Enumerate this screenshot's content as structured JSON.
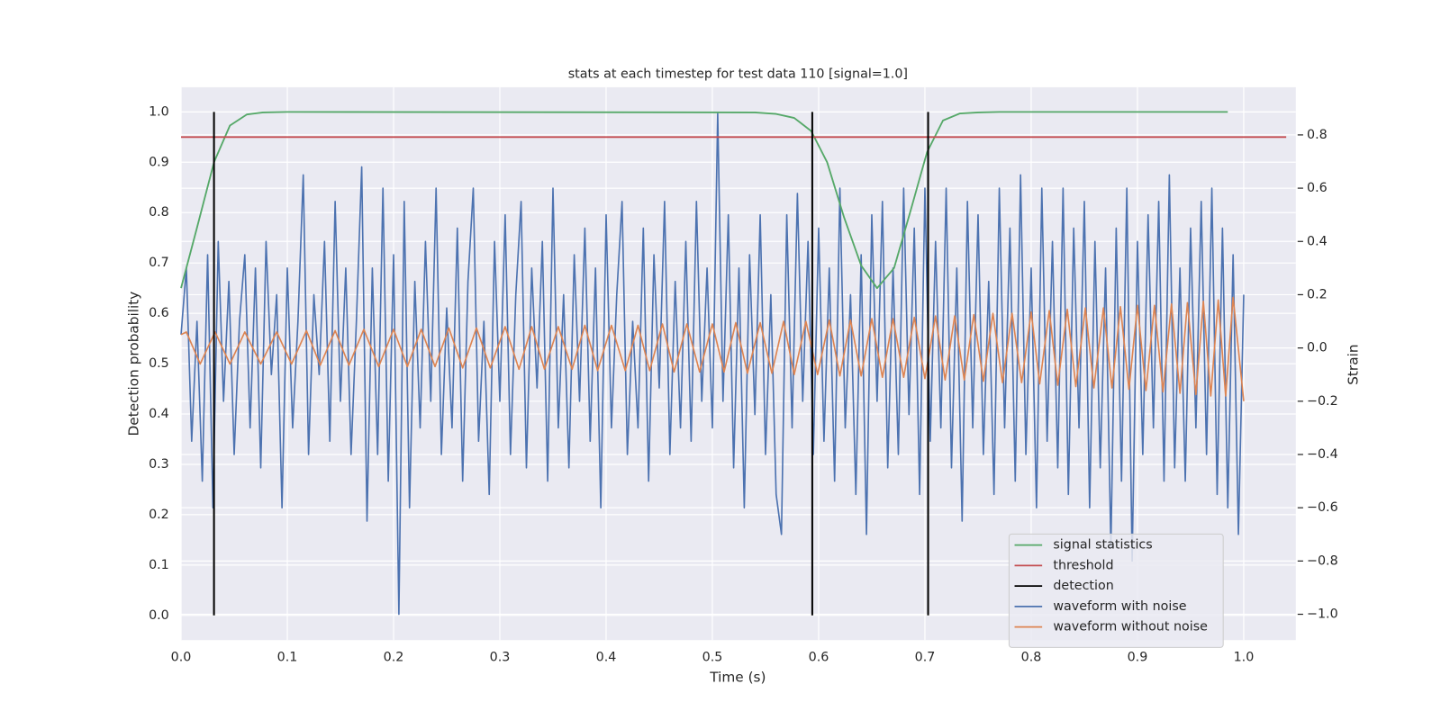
{
  "chart_data": {
    "type": "line",
    "title": "stats at each timestep for test data 110 [signal=1.0]",
    "xlabel": "Time (s)",
    "ylabel": "Detection probability",
    "y2label": "Strain",
    "xlim": [
      0,
      1.049
    ],
    "ylim": [
      -0.049,
      1.049
    ],
    "y2lim": [
      -1.097,
      0.979
    ],
    "xticks": [
      {
        "value": 0,
        "label": "0.0"
      },
      {
        "value": 0.1,
        "label": "0.1"
      },
      {
        "value": 0.2,
        "label": "0.2"
      },
      {
        "value": 0.3,
        "label": "0.3"
      },
      {
        "value": 0.4,
        "label": "0.4"
      },
      {
        "value": 0.5,
        "label": "0.5"
      },
      {
        "value": 0.6,
        "label": "0.6"
      },
      {
        "value": 0.7,
        "label": "0.7"
      },
      {
        "value": 0.8,
        "label": "0.8"
      },
      {
        "value": 0.9,
        "label": "0.9"
      },
      {
        "value": 1,
        "label": "1.0"
      }
    ],
    "yticks": [
      {
        "value": 0,
        "label": "0.0"
      },
      {
        "value": 0.1,
        "label": "0.1"
      },
      {
        "value": 0.2,
        "label": "0.2"
      },
      {
        "value": 0.3,
        "label": "0.3"
      },
      {
        "value": 0.4,
        "label": "0.4"
      },
      {
        "value": 0.5,
        "label": "0.5"
      },
      {
        "value": 0.6,
        "label": "0.6"
      },
      {
        "value": 0.7,
        "label": "0.7"
      },
      {
        "value": 0.8,
        "label": "0.8"
      },
      {
        "value": 0.9,
        "label": "0.9"
      },
      {
        "value": 1,
        "label": "1.0"
      }
    ],
    "y2ticks": [
      {
        "value": -1,
        "label": "−1.0"
      },
      {
        "value": -0.8,
        "label": "−0.8"
      },
      {
        "value": -0.6,
        "label": "−0.6"
      },
      {
        "value": -0.4,
        "label": "−0.4"
      },
      {
        "value": -0.2,
        "label": "−0.2"
      },
      {
        "value": 0,
        "label": "0.0"
      },
      {
        "value": 0.2,
        "label": "0.2"
      },
      {
        "value": 0.4,
        "label": "0.4"
      },
      {
        "value": 0.6,
        "label": "0.6"
      },
      {
        "value": 0.8,
        "label": "0.8"
      }
    ],
    "grid": true,
    "legend": "lower right",
    "series": [
      {
        "name": "signal statistics",
        "color": "#55a868",
        "x": [
          0,
          0.015,
          0.031,
          0.046,
          0.062,
          0.077,
          0.1,
          0.54,
          0.56,
          0.577,
          0.593,
          0.608,
          0.624,
          0.64,
          0.655,
          0.671,
          0.686,
          0.702,
          0.717,
          0.733,
          0.75,
          0.77,
          0.985
        ],
        "values": [
          0.65,
          0.77,
          0.9,
          0.973,
          0.995,
          0.999,
          1.0,
          0.999,
          0.996,
          0.988,
          0.962,
          0.9,
          0.79,
          0.695,
          0.65,
          0.69,
          0.8,
          0.92,
          0.983,
          0.997,
          0.999,
          1.0,
          1.0
        ]
      },
      {
        "name": "threshold",
        "color": "#c44e52",
        "x": [
          0,
          1.04
        ],
        "values": [
          0.95,
          0.95
        ]
      },
      {
        "name": "detection",
        "color": "#000000",
        "kind": "vlines",
        "x": [
          0.031,
          0.594,
          0.703
        ],
        "ymin": [
          0,
          0,
          0
        ],
        "ymax": [
          1,
          1,
          1
        ]
      },
      {
        "name": "waveform with noise",
        "color": "#4c72b0",
        "axis": "y2",
        "x": [
          0,
          0.005,
          0.01,
          0.015,
          0.02,
          0.025,
          0.03,
          0.035,
          0.04,
          0.045,
          0.05,
          0.055,
          0.06,
          0.065,
          0.07,
          0.075,
          0.08,
          0.085,
          0.09,
          0.095,
          0.1,
          0.105,
          0.11,
          0.115,
          0.12,
          0.125,
          0.13,
          0.135,
          0.14,
          0.145,
          0.15,
          0.155,
          0.16,
          0.165,
          0.17,
          0.175,
          0.18,
          0.185,
          0.19,
          0.195,
          0.2,
          0.205,
          0.21,
          0.215,
          0.22,
          0.225,
          0.23,
          0.235,
          0.24,
          0.245,
          0.25,
          0.255,
          0.26,
          0.265,
          0.27,
          0.275,
          0.28,
          0.285,
          0.29,
          0.295,
          0.3,
          0.305,
          0.31,
          0.315,
          0.32,
          0.325,
          0.33,
          0.335,
          0.34,
          0.345,
          0.35,
          0.355,
          0.36,
          0.365,
          0.37,
          0.375,
          0.38,
          0.385,
          0.39,
          0.395,
          0.4,
          0.405,
          0.41,
          0.415,
          0.42,
          0.425,
          0.43,
          0.435,
          0.44,
          0.445,
          0.45,
          0.455,
          0.46,
          0.465,
          0.47,
          0.475,
          0.48,
          0.485,
          0.49,
          0.495,
          0.5,
          0.505,
          0.51,
          0.515,
          0.52,
          0.525,
          0.53,
          0.535,
          0.54,
          0.545,
          0.55,
          0.555,
          0.56,
          0.565,
          0.57,
          0.575,
          0.58,
          0.585,
          0.59,
          0.595,
          0.6,
          0.605,
          0.61,
          0.615,
          0.62,
          0.625,
          0.63,
          0.635,
          0.64,
          0.645,
          0.65,
          0.655,
          0.66,
          0.665,
          0.67,
          0.675,
          0.68,
          0.685,
          0.69,
          0.695,
          0.7,
          0.705,
          0.71,
          0.715,
          0.72,
          0.725,
          0.73,
          0.735,
          0.74,
          0.745,
          0.75,
          0.755,
          0.76,
          0.765,
          0.77,
          0.775,
          0.78,
          0.785,
          0.79,
          0.795,
          0.8,
          0.805,
          0.81,
          0.815,
          0.82,
          0.825,
          0.83,
          0.835,
          0.84,
          0.845,
          0.85,
          0.855,
          0.86,
          0.865,
          0.87,
          0.875,
          0.88,
          0.885,
          0.89,
          0.895,
          0.9,
          0.905,
          0.91,
          0.915,
          0.92,
          0.925,
          0.93,
          0.935,
          0.94,
          0.945,
          0.95,
          0.955,
          0.96,
          0.965,
          0.97,
          0.975,
          0.98,
          0.985,
          0.99,
          0.995,
          1
        ],
        "values": [
          0.05,
          0.3,
          -0.35,
          0.1,
          -0.5,
          0.35,
          -0.6,
          0.4,
          -0.2,
          0.25,
          -0.4,
          0.1,
          0.35,
          -0.3,
          0.3,
          -0.45,
          0.4,
          -0.1,
          0.2,
          -0.6,
          0.3,
          -0.3,
          0.1,
          0.65,
          -0.4,
          0.2,
          -0.1,
          0.4,
          -0.35,
          0.55,
          -0.2,
          0.3,
          -0.4,
          0.1,
          0.68,
          -0.65,
          0.3,
          -0.4,
          0.6,
          -0.5,
          0.35,
          -1.0,
          0.55,
          -0.6,
          0.25,
          -0.3,
          0.4,
          -0.2,
          0.6,
          -0.4,
          0.15,
          -0.3,
          0.45,
          -0.5,
          0.25,
          0.6,
          -0.35,
          0.1,
          -0.55,
          0.4,
          -0.2,
          0.5,
          -0.4,
          0.2,
          0.55,
          -0.45,
          0.3,
          -0.15,
          0.4,
          -0.5,
          0.6,
          -0.3,
          0.2,
          -0.45,
          0.35,
          -0.2,
          0.45,
          -0.35,
          0.3,
          -0.6,
          0.5,
          -0.3,
          0.2,
          0.55,
          -0.4,
          0.1,
          -0.3,
          0.45,
          -0.5,
          0.35,
          -0.15,
          0.55,
          -0.4,
          0.25,
          -0.3,
          0.4,
          -0.35,
          0.55,
          -0.2,
          0.3,
          -0.3,
          0.88,
          -0.2,
          0.5,
          -0.45,
          0.3,
          -0.6,
          0.35,
          -0.25,
          0.5,
          -0.4,
          0.2,
          -0.55,
          -0.7,
          0.5,
          -0.3,
          0.58,
          -0.2,
          0.4,
          -0.4,
          0.45,
          -0.35,
          0.3,
          -0.5,
          0.6,
          -0.3,
          0.2,
          -0.55,
          0.35,
          -0.7,
          0.5,
          -0.2,
          0.55,
          -0.45,
          0.3,
          -0.4,
          0.6,
          -0.25,
          0.45,
          -0.55,
          0.6,
          -0.35,
          0.4,
          -0.3,
          0.6,
          -0.45,
          0.3,
          -0.65,
          0.55,
          -0.3,
          0.5,
          -0.4,
          0.25,
          -0.55,
          0.6,
          -0.3,
          0.45,
          -0.5,
          0.65,
          -0.4,
          0.3,
          -0.6,
          0.6,
          -0.35,
          0.4,
          -0.45,
          0.6,
          -0.55,
          0.45,
          -0.3,
          0.55,
          -0.6,
          0.4,
          -0.45,
          0.3,
          -0.75,
          0.45,
          -0.5,
          0.6,
          -0.8,
          0.4,
          -0.4,
          0.5,
          -0.3,
          0.55,
          -0.5,
          0.65,
          -0.45,
          0.3,
          -0.5,
          0.45,
          -0.3,
          0.55,
          -0.4,
          0.6,
          -0.55,
          0.45,
          -0.6,
          0.35,
          -0.7,
          0.2
        ]
      },
      {
        "name": "waveform without noise",
        "color": "#dd8452",
        "axis": "y2",
        "x": [
          0,
          0.005,
          0.018,
          0.032,
          0.046,
          0.06,
          0.075,
          0.09,
          0.104,
          0.118,
          0.131,
          0.145,
          0.158,
          0.172,
          0.186,
          0.2,
          0.213,
          0.226,
          0.239,
          0.252,
          0.265,
          0.278,
          0.291,
          0.305,
          0.318,
          0.33,
          0.342,
          0.355,
          0.368,
          0.38,
          0.392,
          0.405,
          0.418,
          0.43,
          0.441,
          0.453,
          0.464,
          0.476,
          0.488,
          0.5,
          0.511,
          0.522,
          0.533,
          0.545,
          0.556,
          0.567,
          0.577,
          0.588,
          0.599,
          0.61,
          0.62,
          0.63,
          0.64,
          0.65,
          0.66,
          0.67,
          0.68,
          0.69,
          0.7,
          0.71,
          0.719,
          0.728,
          0.737,
          0.746,
          0.755,
          0.764,
          0.773,
          0.782,
          0.791,
          0.8,
          0.808,
          0.817,
          0.825,
          0.834,
          0.842,
          0.851,
          0.859,
          0.868,
          0.876,
          0.884,
          0.892,
          0.9,
          0.908,
          0.916,
          0.924,
          0.932,
          0.94,
          0.947,
          0.955,
          0.962,
          0.969,
          0.976,
          0.983,
          0.99,
          1
        ],
        "values": [
          0.05,
          0.06,
          -0.06,
          0.06,
          -0.06,
          0.06,
          -0.06,
          0.06,
          -0.06,
          0.065,
          -0.065,
          0.065,
          -0.065,
          0.07,
          -0.07,
          0.07,
          -0.07,
          0.07,
          -0.07,
          0.075,
          -0.075,
          0.075,
          -0.075,
          0.08,
          -0.08,
          0.08,
          -0.08,
          0.08,
          -0.08,
          0.085,
          -0.085,
          0.085,
          -0.085,
          0.085,
          -0.085,
          0.09,
          -0.09,
          0.09,
          -0.09,
          0.09,
          -0.09,
          0.095,
          -0.095,
          0.095,
          -0.095,
          0.1,
          -0.1,
          0.1,
          -0.1,
          0.105,
          -0.105,
          0.105,
          -0.105,
          0.11,
          -0.11,
          0.11,
          -0.11,
          0.115,
          -0.115,
          0.12,
          -0.12,
          0.12,
          -0.12,
          0.125,
          -0.125,
          0.13,
          -0.13,
          0.13,
          -0.13,
          0.135,
          -0.135,
          0.14,
          -0.14,
          0.145,
          -0.145,
          0.15,
          -0.15,
          0.15,
          -0.15,
          0.155,
          -0.155,
          0.16,
          -0.16,
          0.16,
          -0.165,
          0.165,
          -0.17,
          0.17,
          -0.175,
          0.175,
          -0.18,
          0.18,
          -0.18,
          0.19,
          -0.2
        ]
      }
    ]
  }
}
